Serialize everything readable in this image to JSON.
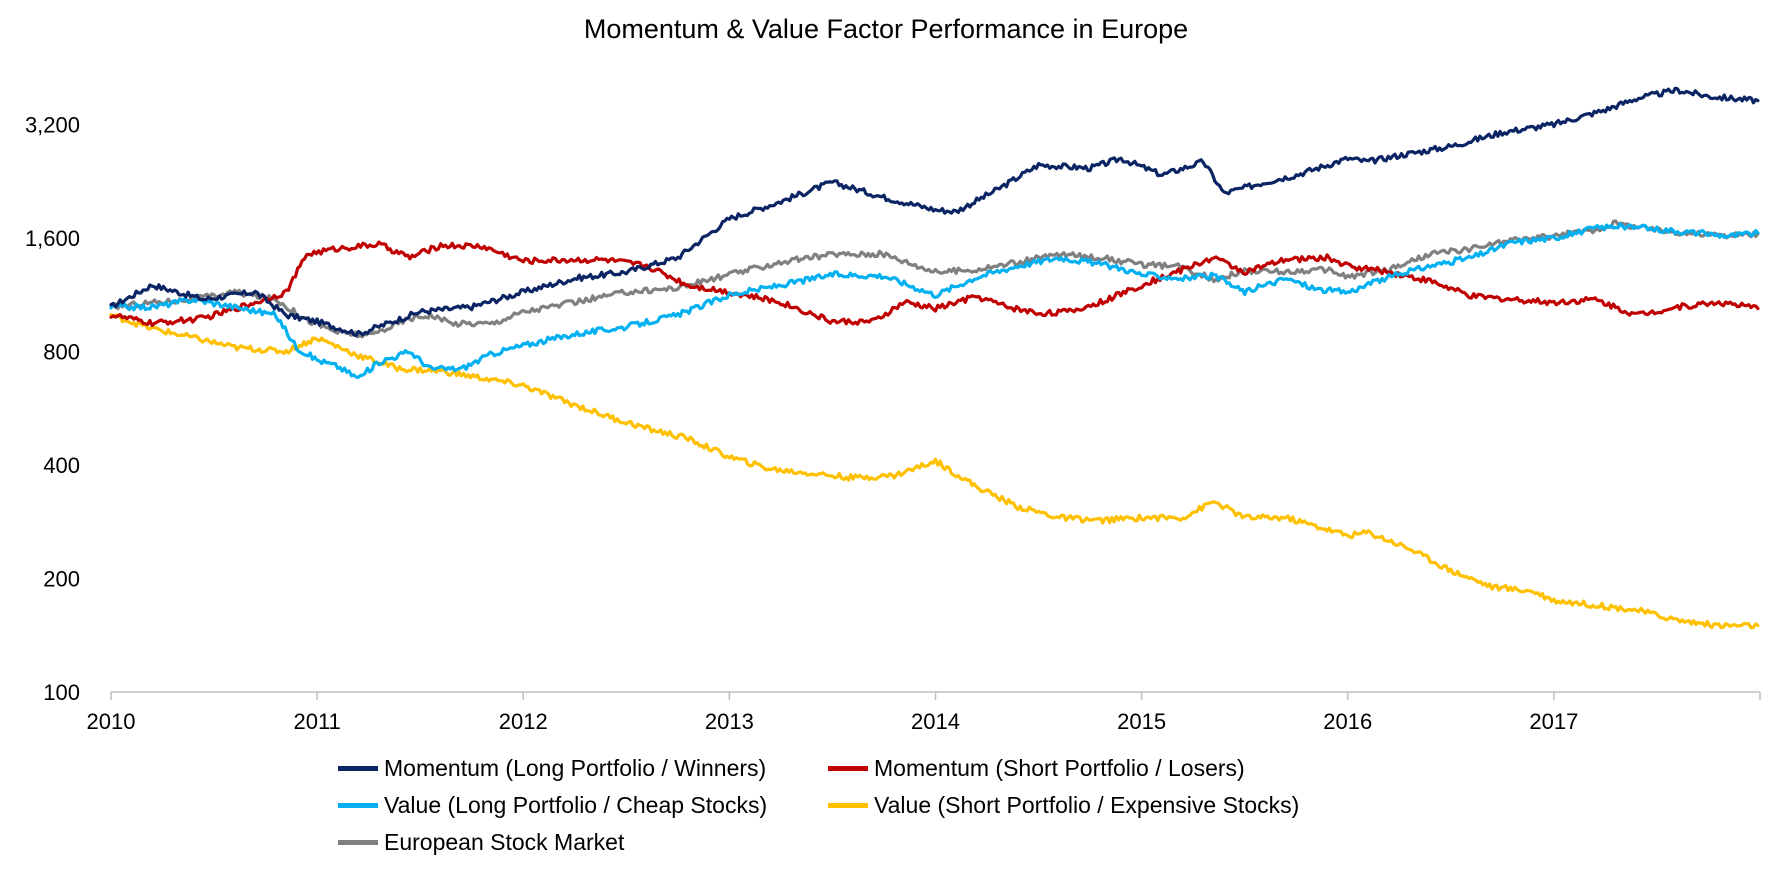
{
  "chart_data": {
    "type": "line",
    "title": "Momentum & Value Factor Performance in Europe",
    "xlabel": "",
    "ylabel": "",
    "y_scale": "log2",
    "ylim": [
      100,
      3600
    ],
    "xlim": [
      2010.0,
      2018.0
    ],
    "y_ticks": [
      100,
      200,
      400,
      800,
      1600,
      3200
    ],
    "y_tick_labels": [
      "100",
      "200",
      "400",
      "800",
      "1,600",
      "3,200"
    ],
    "x_ticks": [
      2010,
      2011,
      2012,
      2013,
      2014,
      2015,
      2016,
      2017
    ],
    "x_tick_labels": [
      "2010",
      "2011",
      "2012",
      "2013",
      "2014",
      "2015",
      "2016",
      "2017"
    ],
    "grid": false,
    "legend_position": "bottom",
    "series": [
      {
        "name": "Momentum (Long Portfolio / Winners)",
        "color": "#0b2463",
        "x": [
          2010.0,
          2010.2,
          2010.45,
          2010.7,
          2010.85,
          2011.0,
          2011.2,
          2011.5,
          2011.75,
          2012.0,
          2012.25,
          2012.5,
          2012.75,
          2013.0,
          2013.25,
          2013.5,
          2013.75,
          2014.0,
          2014.1,
          2014.3,
          2014.5,
          2014.75,
          2014.9,
          2015.1,
          2015.3,
          2015.4,
          2015.6,
          2015.75,
          2016.0,
          2016.1,
          2016.25,
          2016.5,
          2016.75,
          2017.0,
          2017.25,
          2017.4,
          2017.6,
          2017.75,
          2017.99
        ],
        "values": [
          1050,
          1200,
          1100,
          1150,
          1000,
          960,
          890,
          1020,
          1050,
          1150,
          1250,
          1300,
          1420,
          1800,
          2000,
          2250,
          2050,
          1900,
          1880,
          2150,
          2500,
          2450,
          2600,
          2350,
          2550,
          2100,
          2250,
          2350,
          2600,
          2550,
          2650,
          2800,
          3050,
          3200,
          3500,
          3750,
          3950,
          3800,
          3700
        ]
      },
      {
        "name": "Momentum (Short Portfolio / Losers)",
        "color": "#c00000",
        "x": [
          2010.0,
          2010.2,
          2010.45,
          2010.7,
          2010.85,
          2010.95,
          2011.1,
          2011.3,
          2011.45,
          2011.6,
          2011.8,
          2012.0,
          2012.2,
          2012.4,
          2012.6,
          2012.8,
          2013.0,
          2013.25,
          2013.5,
          2013.7,
          2013.85,
          2014.0,
          2014.2,
          2014.35,
          2014.5,
          2014.65,
          2014.8,
          2015.0,
          2015.2,
          2015.35,
          2015.5,
          2015.7,
          2015.9,
          2016.0,
          2016.2,
          2016.4,
          2016.6,
          2016.8,
          2017.0,
          2017.2,
          2017.4,
          2017.6,
          2017.8,
          2017.99
        ],
        "values": [
          1000,
          950,
          980,
          1080,
          1150,
          1450,
          1500,
          1540,
          1420,
          1530,
          1520,
          1390,
          1400,
          1400,
          1350,
          1200,
          1150,
          1080,
          960,
          960,
          1080,
          1040,
          1120,
          1050,
          1010,
          1020,
          1080,
          1200,
          1320,
          1420,
          1300,
          1400,
          1420,
          1350,
          1300,
          1230,
          1120,
          1100,
          1080,
          1100,
          1000,
          1050,
          1080,
          1040
        ]
      },
      {
        "name": "Value (Long Portfolio / Cheap Stocks)",
        "color": "#00b0f0",
        "x": [
          2010.0,
          2010.2,
          2010.4,
          2010.6,
          2010.8,
          2010.9,
          2011.0,
          2011.1,
          2011.2,
          2011.3,
          2011.45,
          2011.55,
          2011.7,
          2011.85,
          2012.0,
          2012.25,
          2012.5,
          2012.75,
          2013.0,
          2013.25,
          2013.5,
          2013.75,
          2014.0,
          2014.2,
          2014.4,
          2014.6,
          2014.75,
          2014.9,
          2015.0,
          2015.2,
          2015.35,
          2015.5,
          2015.7,
          2015.85,
          2016.0,
          2016.2,
          2016.4,
          2016.6,
          2016.8,
          2017.0,
          2017.2,
          2017.3,
          2017.5,
          2017.7,
          2017.85,
          2017.99
        ],
        "values": [
          1050,
          1050,
          1100,
          1050,
          1000,
          820,
          760,
          730,
          680,
          750,
          800,
          720,
          720,
          790,
          830,
          890,
          930,
          1000,
          1130,
          1200,
          1280,
          1270,
          1130,
          1260,
          1350,
          1420,
          1380,
          1330,
          1280,
          1250,
          1270,
          1150,
          1250,
          1170,
          1150,
          1260,
          1350,
          1420,
          1560,
          1600,
          1700,
          1720,
          1690,
          1650,
          1620,
          1650
        ]
      },
      {
        "name": "Value (Short Portfolio / Expensive Stocks)",
        "color": "#ffc000",
        "x": [
          2010.0,
          2010.2,
          2010.4,
          2010.6,
          2010.85,
          2011.0,
          2011.2,
          2011.4,
          2011.6,
          2011.8,
          2012.0,
          2012.2,
          2012.4,
          2012.6,
          2012.8,
          2013.0,
          2013.2,
          2013.4,
          2013.6,
          2013.8,
          2014.0,
          2014.2,
          2014.4,
          2014.6,
          2014.8,
          2015.0,
          2015.2,
          2015.35,
          2015.5,
          2015.7,
          2015.9,
          2016.0,
          2016.1,
          2016.3,
          2016.5,
          2016.7,
          2016.9,
          2017.0,
          2017.2,
          2017.4,
          2017.6,
          2017.8,
          2017.99
        ],
        "values": [
          1000,
          920,
          870,
          820,
          800,
          870,
          780,
          720,
          710,
          680,
          650,
          590,
          540,
          500,
          470,
          420,
          390,
          380,
          370,
          375,
          410,
          350,
          310,
          290,
          285,
          290,
          290,
          320,
          290,
          290,
          270,
          260,
          265,
          240,
          210,
          190,
          185,
          175,
          170,
          165,
          155,
          150,
          150
        ]
      },
      {
        "name": "European Stock Market",
        "color": "#808080",
        "x": [
          2010.0,
          2010.2,
          2010.4,
          2010.6,
          2010.8,
          2010.95,
          2011.1,
          2011.25,
          2011.45,
          2011.55,
          2011.65,
          2011.85,
          2012.0,
          2012.25,
          2012.5,
          2012.75,
          2013.0,
          2013.25,
          2013.5,
          2013.75,
          2014.0,
          2014.2,
          2014.4,
          2014.6,
          2014.8,
          2015.0,
          2015.2,
          2015.35,
          2015.5,
          2015.7,
          2015.9,
          2016.0,
          2016.2,
          2016.4,
          2016.6,
          2016.8,
          2017.0,
          2017.2,
          2017.3,
          2017.5,
          2017.7,
          2017.85,
          2017.99
        ],
        "values": [
          1050,
          1080,
          1100,
          1150,
          1100,
          970,
          900,
          880,
          980,
          1000,
          950,
          950,
          1020,
          1080,
          1150,
          1180,
          1280,
          1380,
          1450,
          1450,
          1300,
          1320,
          1380,
          1450,
          1420,
          1360,
          1340,
          1240,
          1310,
          1300,
          1320,
          1260,
          1320,
          1450,
          1500,
          1580,
          1620,
          1680,
          1750,
          1680,
          1640,
          1620,
          1640
        ]
      }
    ]
  }
}
